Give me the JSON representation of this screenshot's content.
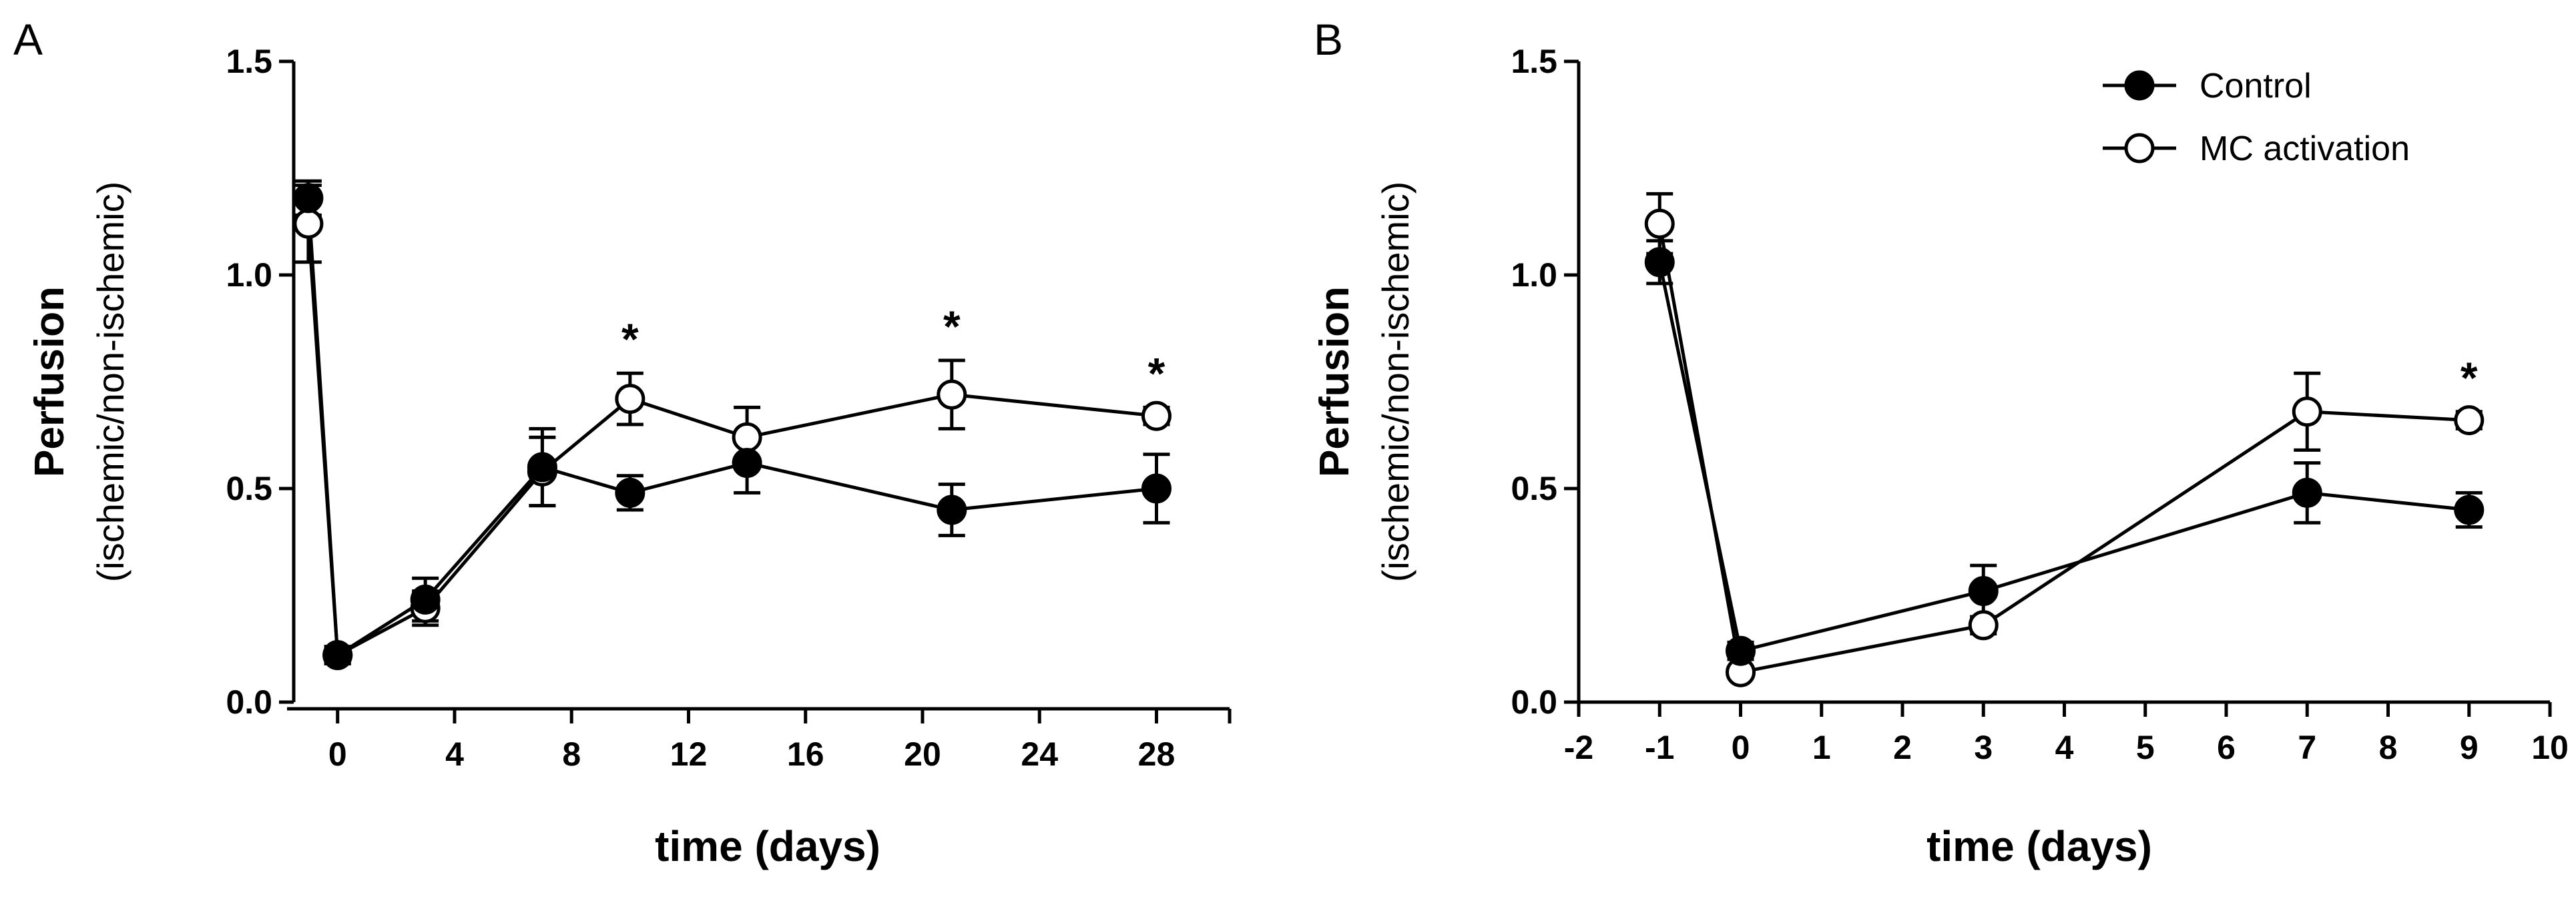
{
  "colors": {
    "control": "#000000",
    "mc_activation": "#ffffff",
    "axis": "#000000",
    "background": "#ffffff"
  },
  "chart_data": [
    {
      "panel": "A",
      "type": "line",
      "title": "",
      "xlabel": "time (days)",
      "ylabel": "Perfusion",
      "ylabel_sub": "(ischemic/non-ischemic)",
      "xlim": [
        -1.5,
        30.5
      ],
      "ylim": [
        0,
        1.5
      ],
      "xticks": [
        0,
        4,
        8,
        12,
        16,
        20,
        24,
        28
      ],
      "xtick_labels": [
        "0",
        "4",
        "8",
        "12",
        "16",
        "20",
        "24",
        "28"
      ],
      "yticks": [
        0,
        0.5,
        1,
        1.5
      ],
      "ytick_labels": [
        "0.0",
        "0.5",
        "1.0",
        "1.5"
      ],
      "series": [
        {
          "name": "Control",
          "marker": "filled-circle",
          "x": [
            -1,
            0,
            3,
            7,
            10,
            14,
            21,
            28
          ],
          "y": [
            1.18,
            0.11,
            0.24,
            0.55,
            0.49,
            0.56,
            0.45,
            0.5
          ],
          "err": [
            0.04,
            0.02,
            0.05,
            0.09,
            0.04,
            0.07,
            0.06,
            0.08
          ]
        },
        {
          "name": "MC activation",
          "marker": "open-circle",
          "x": [
            -1,
            0,
            3,
            7,
            10,
            14,
            21,
            28
          ],
          "y": [
            1.12,
            0.11,
            0.22,
            0.54,
            0.71,
            0.62,
            0.72,
            0.67
          ],
          "err": [
            0.09,
            0.02,
            0.04,
            0.08,
            0.06,
            0.07,
            0.08,
            0.02
          ]
        }
      ],
      "annotations": [
        {
          "x": 10,
          "text": "*"
        },
        {
          "x": 21,
          "text": "*"
        },
        {
          "x": 28,
          "text": "*"
        }
      ]
    },
    {
      "panel": "B",
      "type": "line",
      "title": "",
      "xlabel": "time (days)",
      "ylabel": "Perfusion",
      "ylabel_sub": "(ischemic/non-ischemic)",
      "xlim": [
        -2,
        10
      ],
      "ylim": [
        0,
        1.5
      ],
      "xticks": [
        -2,
        -1,
        0,
        1,
        2,
        3,
        4,
        5,
        6,
        7,
        8,
        9,
        10
      ],
      "xtick_labels": [
        "-2",
        "-1",
        "0",
        "1",
        "2",
        "3",
        "4",
        "5",
        "6",
        "7",
        "8",
        "9",
        "10"
      ],
      "yticks": [
        0,
        0.5,
        1,
        1.5
      ],
      "ytick_labels": [
        "0.0",
        "0.5",
        "1.0",
        "1.5"
      ],
      "legend": {
        "position": "top-right",
        "entries": [
          "Control",
          "MC activation"
        ]
      },
      "series": [
        {
          "name": "Control",
          "marker": "filled-circle",
          "x": [
            -1,
            0,
            3,
            7,
            9
          ],
          "y": [
            1.03,
            0.12,
            0.26,
            0.49,
            0.45
          ],
          "err": [
            0.05,
            0.02,
            0.06,
            0.07,
            0.04
          ]
        },
        {
          "name": "MC activation",
          "marker": "open-circle",
          "x": [
            -1,
            0,
            3,
            7,
            9
          ],
          "y": [
            1.12,
            0.07,
            0.18,
            0.68,
            0.66
          ],
          "err": [
            0.07,
            0.01,
            0.02,
            0.09,
            0.02
          ]
        }
      ],
      "annotations": [
        {
          "x": 9,
          "text": "*"
        }
      ]
    }
  ]
}
